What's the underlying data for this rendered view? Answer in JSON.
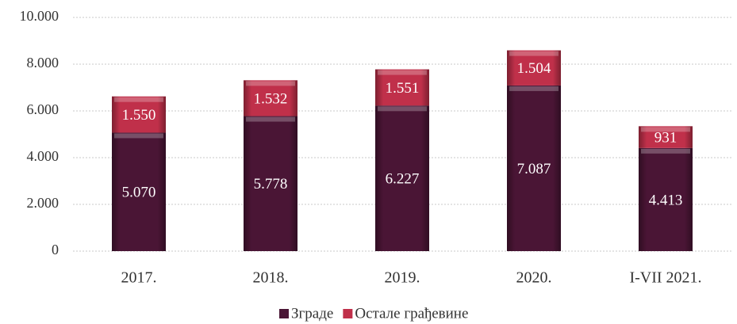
{
  "chart_data": {
    "type": "stacked_bar",
    "categories": [
      "2017.",
      "2018.",
      "2019.",
      "2020.",
      "I-VII 2021."
    ],
    "series": [
      {
        "name": "Зграде",
        "color": "#4a1535",
        "values": [
          5070,
          5778,
          6227,
          7087,
          4413
        ],
        "value_labels": [
          "5.070",
          "5.778",
          "6.227",
          "7.087",
          "4.413"
        ]
      },
      {
        "name": "Остале грађевине",
        "color": "#c0304a",
        "values": [
          1550,
          1532,
          1551,
          1504,
          931
        ],
        "value_labels": [
          "1.550",
          "1.532",
          "1.551",
          "1.504",
          "931"
        ]
      }
    ],
    "ylim": [
      0,
      10000
    ],
    "yticks": [
      0,
      {
        "value": 2000,
        "label": "2.000"
      },
      {
        "value": 4000,
        "label": "4.000"
      },
      {
        "value": 6000,
        "label": "6.000"
      },
      {
        "value": 8000,
        "label": "8.000"
      },
      {
        "value": 10000,
        "label": "10.000"
      }
    ],
    "grid": true,
    "legend": "bottom"
  }
}
